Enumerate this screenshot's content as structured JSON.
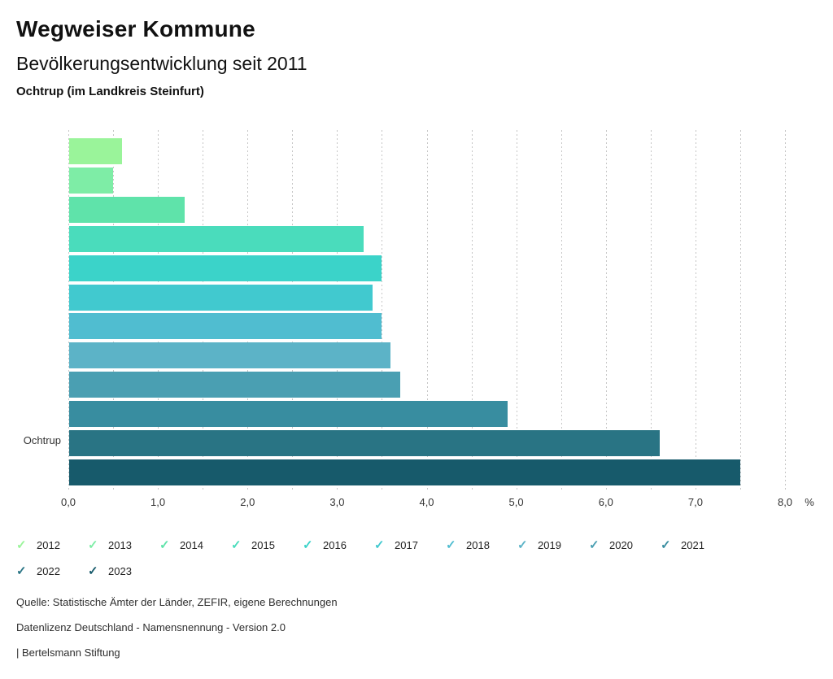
{
  "header": {
    "title": "Wegweiser Kommune",
    "subtitle": "Bevölkerungsentwicklung seit 2011",
    "region": "Ochtrup (im Landkreis Steinfurt)"
  },
  "chart_data": {
    "type": "bar",
    "orientation": "horizontal",
    "title": "Bevölkerungsentwicklung seit 2011",
    "group_label": "Ochtrup",
    "unit": "%",
    "xlim": [
      0,
      8
    ],
    "grid_step": 0.5,
    "grid_on": true,
    "x_tick_values": [
      0,
      1,
      2,
      3,
      4,
      5,
      6,
      7,
      8
    ],
    "x_tick_labels": [
      "0,0",
      "1,0",
      "2,0",
      "3,0",
      "4,0",
      "5,0",
      "6,0",
      "7,0",
      "8,0"
    ],
    "series": [
      {
        "year": "2012",
        "value": 0.6,
        "color": "#9af49a"
      },
      {
        "year": "2013",
        "value": 0.5,
        "color": "#7eeda6"
      },
      {
        "year": "2014",
        "value": 1.3,
        "color": "#5fe3aa"
      },
      {
        "year": "2015",
        "value": 3.3,
        "color": "#4adcbc"
      },
      {
        "year": "2016",
        "value": 3.5,
        "color": "#3bd3c9"
      },
      {
        "year": "2017",
        "value": 3.4,
        "color": "#41c9cf"
      },
      {
        "year": "2018",
        "value": 3.5,
        "color": "#50bdd0"
      },
      {
        "year": "2019",
        "value": 3.6,
        "color": "#5cb3c7"
      },
      {
        "year": "2020",
        "value": 3.7,
        "color": "#4a9fb2"
      },
      {
        "year": "2021",
        "value": 4.9,
        "color": "#388da0"
      },
      {
        "year": "2022",
        "value": 6.6,
        "color": "#297484"
      },
      {
        "year": "2023",
        "value": 7.5,
        "color": "#175a6b"
      }
    ],
    "legend_position": "bottom",
    "legend_check_icon": "✓"
  },
  "footer": {
    "source": "Quelle: Statistische Ämter der Länder, ZEFIR, eigene Berechnungen",
    "license": "Datenlizenz Deutschland - Namensnennung - Version 2.0",
    "attribution": "| Bertelsmann Stiftung"
  }
}
